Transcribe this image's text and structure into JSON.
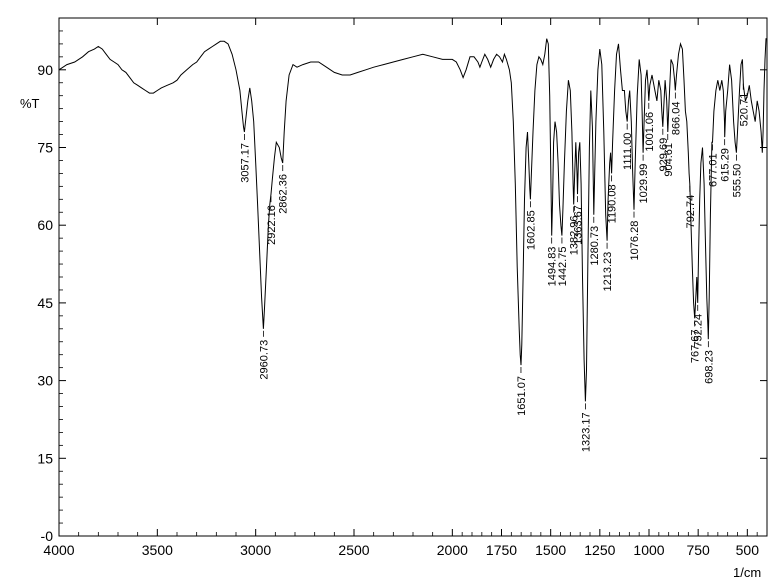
{
  "chart_data": {
    "type": "line",
    "title": "",
    "ylabel": "%T",
    "xlabel": "1/cm",
    "xlim": [
      4000,
      400
    ],
    "ylim": [
      0,
      100
    ],
    "x_ticks": [
      4000,
      3500,
      3000,
      2500,
      2000,
      1750,
      1500,
      1250,
      1000,
      750,
      500
    ],
    "x_tick_labels": [
      "4000",
      "3500",
      "3000",
      "2500",
      "2000",
      "1750",
      "1500",
      "1250",
      "1000",
      "750",
      "500"
    ],
    "y_ticks": [
      0,
      15,
      30,
      45,
      60,
      75,
      90
    ],
    "y_tick_labels": [
      "-0",
      "15",
      "30",
      "45",
      "60",
      "75",
      "90"
    ],
    "series": [
      {
        "points": [
          [
            4000,
            90.0
          ],
          [
            3960,
            91.0
          ],
          [
            3920,
            91.5
          ],
          [
            3880,
            92.5
          ],
          [
            3850,
            93.5
          ],
          [
            3820,
            94.0
          ],
          [
            3800,
            94.5
          ],
          [
            3780,
            94.0
          ],
          [
            3760,
            93.0
          ],
          [
            3740,
            92.0
          ],
          [
            3720,
            91.5
          ],
          [
            3700,
            91.0
          ],
          [
            3680,
            90.0
          ],
          [
            3660,
            89.5
          ],
          [
            3640,
            88.5
          ],
          [
            3620,
            87.5
          ],
          [
            3600,
            87.0
          ],
          [
            3580,
            86.5
          ],
          [
            3560,
            86.0
          ],
          [
            3540,
            85.5
          ],
          [
            3520,
            85.5
          ],
          [
            3500,
            86.0
          ],
          [
            3480,
            86.5
          ],
          [
            3450,
            87.0
          ],
          [
            3420,
            87.5
          ],
          [
            3400,
            88.0
          ],
          [
            3380,
            89.0
          ],
          [
            3350,
            90.0
          ],
          [
            3320,
            91.0
          ],
          [
            3300,
            91.5
          ],
          [
            3280,
            92.5
          ],
          [
            3260,
            93.5
          ],
          [
            3240,
            94.0
          ],
          [
            3220,
            94.5
          ],
          [
            3200,
            95.0
          ],
          [
            3180,
            95.5
          ],
          [
            3160,
            95.5
          ],
          [
            3140,
            95.0
          ],
          [
            3120,
            93.0
          ],
          [
            3100,
            90.0
          ],
          [
            3080,
            86.0
          ],
          [
            3070,
            82.0
          ],
          [
            3062,
            79.0
          ],
          [
            3057.17,
            78.0
          ],
          [
            3050,
            80.5
          ],
          [
            3040,
            84.0
          ],
          [
            3030,
            86.5
          ],
          [
            3020,
            84.0
          ],
          [
            3010,
            80.0
          ],
          [
            3000,
            72.0
          ],
          [
            2990,
            64.0
          ],
          [
            2980,
            55.0
          ],
          [
            2970,
            46.0
          ],
          [
            2960.73,
            40.0
          ],
          [
            2955,
            44.0
          ],
          [
            2945,
            52.0
          ],
          [
            2935,
            60.0
          ],
          [
            2928,
            64.0
          ],
          [
            2922.16,
            66.0
          ],
          [
            2915,
            69.0
          ],
          [
            2905,
            73.0
          ],
          [
            2895,
            76.0
          ],
          [
            2880,
            75.0
          ],
          [
            2870,
            73.0
          ],
          [
            2862.36,
            72.0
          ],
          [
            2855,
            78.0
          ],
          [
            2845,
            84.0
          ],
          [
            2830,
            89.0
          ],
          [
            2810,
            91.0
          ],
          [
            2790,
            90.5
          ],
          [
            2760,
            91.0
          ],
          [
            2720,
            91.5
          ],
          [
            2680,
            91.5
          ],
          [
            2640,
            90.5
          ],
          [
            2600,
            89.5
          ],
          [
            2560,
            89.0
          ],
          [
            2520,
            89.0
          ],
          [
            2480,
            89.5
          ],
          [
            2440,
            90.0
          ],
          [
            2400,
            90.5
          ],
          [
            2350,
            91.0
          ],
          [
            2300,
            91.5
          ],
          [
            2250,
            92.0
          ],
          [
            2200,
            92.5
          ],
          [
            2150,
            93.0
          ],
          [
            2100,
            92.5
          ],
          [
            2050,
            92.0
          ],
          [
            2000,
            92.0
          ],
          [
            1980,
            91.5
          ],
          [
            1960,
            90.0
          ],
          [
            1945,
            88.5
          ],
          [
            1930,
            90.0
          ],
          [
            1910,
            92.5
          ],
          [
            1890,
            92.5
          ],
          [
            1870,
            91.5
          ],
          [
            1860,
            90.5
          ],
          [
            1850,
            91.5
          ],
          [
            1835,
            93.0
          ],
          [
            1820,
            92.0
          ],
          [
            1805,
            90.5
          ],
          [
            1790,
            92.0
          ],
          [
            1775,
            93.0
          ],
          [
            1760,
            92.5
          ],
          [
            1745,
            91.5
          ],
          [
            1735,
            93.0
          ],
          [
            1725,
            92.0
          ],
          [
            1710,
            90.0
          ],
          [
            1700,
            87.5
          ],
          [
            1690,
            80.0
          ],
          [
            1680,
            68.0
          ],
          [
            1670,
            52.0
          ],
          [
            1660,
            40.0
          ],
          [
            1655,
            35.0
          ],
          [
            1651.07,
            33.0
          ],
          [
            1647,
            37.0
          ],
          [
            1640,
            50.0
          ],
          [
            1633,
            65.0
          ],
          [
            1625,
            75.0
          ],
          [
            1618,
            78.0
          ],
          [
            1612,
            73.0
          ],
          [
            1606,
            67.0
          ],
          [
            1602.85,
            65.0
          ],
          [
            1598,
            70.0
          ],
          [
            1590,
            78.0
          ],
          [
            1580,
            86.0
          ],
          [
            1570,
            91.0
          ],
          [
            1560,
            92.5
          ],
          [
            1550,
            92.0
          ],
          [
            1540,
            91.0
          ],
          [
            1530,
            93.0
          ],
          [
            1520,
            96.0
          ],
          [
            1512,
            95.0
          ],
          [
            1505,
            85.0
          ],
          [
            1500,
            72.0
          ],
          [
            1494.83,
            58.0
          ],
          [
            1490,
            65.0
          ],
          [
            1485,
            76.0
          ],
          [
            1478,
            80.0
          ],
          [
            1470,
            78.0
          ],
          [
            1462,
            72.0
          ],
          [
            1455,
            64.0
          ],
          [
            1448,
            60.0
          ],
          [
            1442.75,
            58.0
          ],
          [
            1438,
            63.0
          ],
          [
            1430,
            72.0
          ],
          [
            1420,
            82.0
          ],
          [
            1410,
            88.0
          ],
          [
            1400,
            86.0
          ],
          [
            1392,
            78.0
          ],
          [
            1386,
            68.0
          ],
          [
            1382.96,
            64.0
          ],
          [
            1378,
            70.0
          ],
          [
            1372,
            76.0
          ],
          [
            1366,
            70.0
          ],
          [
            1363.67,
            66.0
          ],
          [
            1358,
            74.0
          ],
          [
            1352,
            76.0
          ],
          [
            1345,
            68.0
          ],
          [
            1338,
            50.0
          ],
          [
            1330,
            34.0
          ],
          [
            1323.17,
            26.0
          ],
          [
            1318,
            32.0
          ],
          [
            1310,
            55.0
          ],
          [
            1303,
            75.0
          ],
          [
            1296,
            86.0
          ],
          [
            1288,
            79.0
          ],
          [
            1280.73,
            62.0
          ],
          [
            1276,
            70.0
          ],
          [
            1270,
            80.0
          ],
          [
            1260,
            90.0
          ],
          [
            1250,
            94.0
          ],
          [
            1240,
            91.0
          ],
          [
            1230,
            78.0
          ],
          [
            1220,
            62.0
          ],
          [
            1213.23,
            57.0
          ],
          [
            1208,
            65.0
          ],
          [
            1200,
            72.0
          ],
          [
            1195,
            74.0
          ],
          [
            1190.08,
            70.0
          ],
          [
            1185,
            76.0
          ],
          [
            1175,
            86.0
          ],
          [
            1165,
            93.0
          ],
          [
            1155,
            95.0
          ],
          [
            1145,
            90.0
          ],
          [
            1135,
            86.0
          ],
          [
            1125,
            86.0
          ],
          [
            1118,
            82.0
          ],
          [
            1111.0,
            80.0
          ],
          [
            1104,
            84.0
          ],
          [
            1098,
            86.0
          ],
          [
            1090,
            80.0
          ],
          [
            1083,
            70.0
          ],
          [
            1076.28,
            63.0
          ],
          [
            1070,
            72.0
          ],
          [
            1060,
            85.0
          ],
          [
            1050,
            92.0
          ],
          [
            1040,
            89.0
          ],
          [
            1035,
            82.0
          ],
          [
            1029.99,
            74.0
          ],
          [
            1025,
            80.0
          ],
          [
            1018,
            88.0
          ],
          [
            1010,
            90.0
          ],
          [
            1005,
            87.0
          ],
          [
            1001.06,
            84.0
          ],
          [
            996,
            87.0
          ],
          [
            985,
            89.0
          ],
          [
            970,
            86.0
          ],
          [
            960,
            84.0
          ],
          [
            950,
            88.0
          ],
          [
            940,
            86.0
          ],
          [
            935,
            82.0
          ],
          [
            929.69,
            79.0
          ],
          [
            925,
            83.0
          ],
          [
            918,
            88.0
          ],
          [
            910,
            84.0
          ],
          [
            904.61,
            78.0
          ],
          [
            898,
            84.0
          ],
          [
            888,
            92.0
          ],
          [
            878,
            91.0
          ],
          [
            870,
            88.0
          ],
          [
            866.04,
            86.0
          ],
          [
            860,
            89.0
          ],
          [
            850,
            93.0
          ],
          [
            840,
            95.0
          ],
          [
            830,
            94.0
          ],
          [
            822,
            88.0
          ],
          [
            815,
            82.0
          ],
          [
            808,
            80.0
          ],
          [
            800,
            74.0
          ],
          [
            796,
            70.0
          ],
          [
            792.74,
            68.0
          ],
          [
            788,
            62.0
          ],
          [
            780,
            52.0
          ],
          [
            773,
            45.0
          ],
          [
            767.67,
            42.0
          ],
          [
            762,
            46.0
          ],
          [
            757,
            50.0
          ],
          [
            752.24,
            45.0
          ],
          [
            748,
            55.0
          ],
          [
            742,
            65.0
          ],
          [
            736,
            72.0
          ],
          [
            728,
            75.0
          ],
          [
            720,
            68.0
          ],
          [
            713,
            57.0
          ],
          [
            706,
            46.0
          ],
          [
            700,
            40.0
          ],
          [
            698.23,
            38.0
          ],
          [
            694,
            46.0
          ],
          [
            688,
            62.0
          ],
          [
            680,
            76.0
          ],
          [
            677.01,
            76.0
          ],
          [
            670,
            82.0
          ],
          [
            660,
            86.0
          ],
          [
            650,
            88.0
          ],
          [
            640,
            86.0
          ],
          [
            630,
            88.0
          ],
          [
            622,
            86.0
          ],
          [
            616,
            80.0
          ],
          [
            615.29,
            77.0
          ],
          [
            610,
            82.0
          ],
          [
            600,
            86.0
          ],
          [
            590,
            91.0
          ],
          [
            580,
            88.0
          ],
          [
            570,
            80.0
          ],
          [
            562,
            76.0
          ],
          [
            555.5,
            74.0
          ],
          [
            550,
            78.0
          ],
          [
            540,
            86.0
          ],
          [
            532,
            91.0
          ],
          [
            525,
            92.0
          ],
          [
            520,
            87.0
          ],
          [
            510,
            84.0
          ],
          [
            500,
            85.0
          ],
          [
            490,
            87.0
          ],
          [
            480,
            84.0
          ],
          [
            470,
            82.0
          ],
          [
            460,
            80.0
          ],
          [
            450,
            84.0
          ],
          [
            440,
            82.0
          ],
          [
            430,
            78.0
          ],
          [
            427,
            76.0
          ],
          [
            424,
            74.0
          ],
          [
            420,
            78.0
          ],
          [
            415,
            86.0
          ],
          [
            410,
            92.0
          ],
          [
            405,
            96.0
          ],
          [
            400,
            96.0
          ]
        ]
      }
    ],
    "annotations": [
      {
        "x": 3057.17,
        "label": "3057.17"
      },
      {
        "x": 2960.73,
        "label": "2960.73"
      },
      {
        "x": 2922.16,
        "label": "2922.16"
      },
      {
        "x": 2862.36,
        "label": "2862.36"
      },
      {
        "x": 1651.07,
        "label": "1651.07"
      },
      {
        "x": 1602.85,
        "label": "1602.85"
      },
      {
        "x": 1494.83,
        "label": "1494.83"
      },
      {
        "x": 1442.75,
        "label": "1442.75"
      },
      {
        "x": 1382.96,
        "label": "1382.96"
      },
      {
        "x": 1363.67,
        "label": "1363.67"
      },
      {
        "x": 1323.17,
        "label": "1323.17"
      },
      {
        "x": 1280.73,
        "label": "1280.73"
      },
      {
        "x": 1213.23,
        "label": "1213.23"
      },
      {
        "x": 1190.08,
        "label": "1190.08"
      },
      {
        "x": 1111.0,
        "label": "1111.00"
      },
      {
        "x": 1076.28,
        "label": "1076.28"
      },
      {
        "x": 1029.99,
        "label": "1029.99"
      },
      {
        "x": 1001.06,
        "label": "1001.06"
      },
      {
        "x": 929.69,
        "label": "929.69"
      },
      {
        "x": 904.61,
        "label": "904.61"
      },
      {
        "x": 866.04,
        "label": "866.04"
      },
      {
        "x": 792.74,
        "label": "792.74"
      },
      {
        "x": 767.67,
        "label": "767.67"
      },
      {
        "x": 752.24,
        "label": "752.24"
      },
      {
        "x": 698.23,
        "label": "698.23"
      },
      {
        "x": 677.01,
        "label": "677.01"
      },
      {
        "x": 615.29,
        "label": "615.29"
      },
      {
        "x": 555.5,
        "label": "555.50"
      },
      {
        "x": 520.71,
        "label": "520.71"
      }
    ],
    "grid": false,
    "legend": "none"
  }
}
